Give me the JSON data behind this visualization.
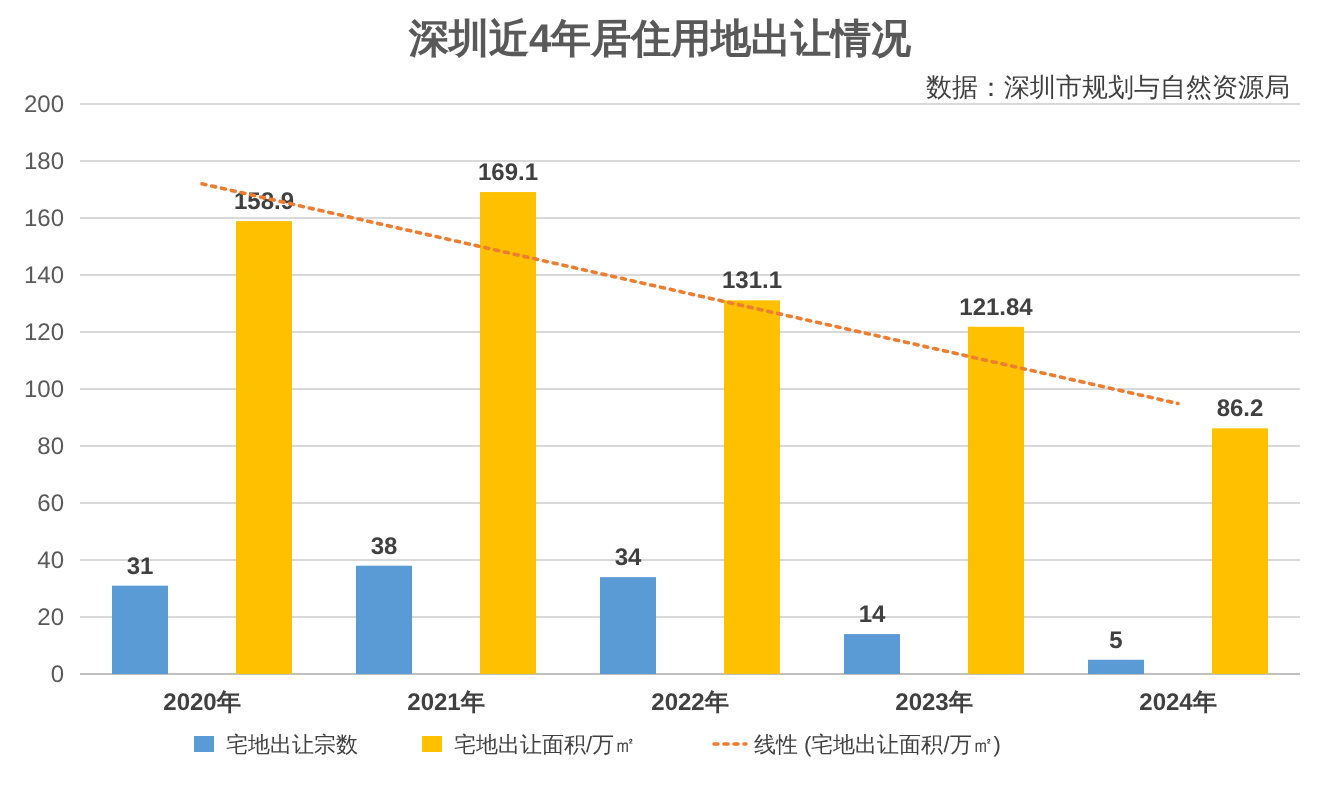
{
  "chart_data": {
    "type": "bar",
    "title": "深圳近4年居住用地出让情况",
    "annotations": [
      "数据：深圳市规划与自然资源局"
    ],
    "categories": [
      "2020年",
      "2021年",
      "2022年",
      "2023年",
      "2024年"
    ],
    "series": [
      {
        "name": "宅地出让宗数",
        "color": "#5b9bd5",
        "values": [
          31,
          38,
          34,
          14,
          5
        ],
        "value_labels": [
          "31",
          "38",
          "34",
          "14",
          "5"
        ]
      },
      {
        "name": "宅地出让面积/万㎡",
        "color": "#ffc000",
        "values": [
          158.9,
          169.1,
          131.1,
          121.84,
          86.2
        ],
        "value_labels": [
          "158.9",
          "169.1",
          "131.1",
          "121.84",
          "86.2"
        ]
      },
      {
        "name": "线性 (宅地出让面积/万㎡)",
        "type": "line",
        "color": "#ed7d31",
        "line_style": "dotted",
        "values": [
          172,
          152.7,
          133.4,
          114.2,
          94.9
        ]
      }
    ],
    "ylim": [
      0,
      200
    ],
    "yticks": [
      0,
      20,
      40,
      60,
      80,
      100,
      120,
      140,
      160,
      180,
      200
    ],
    "grid": "y",
    "legend": "bottom"
  }
}
